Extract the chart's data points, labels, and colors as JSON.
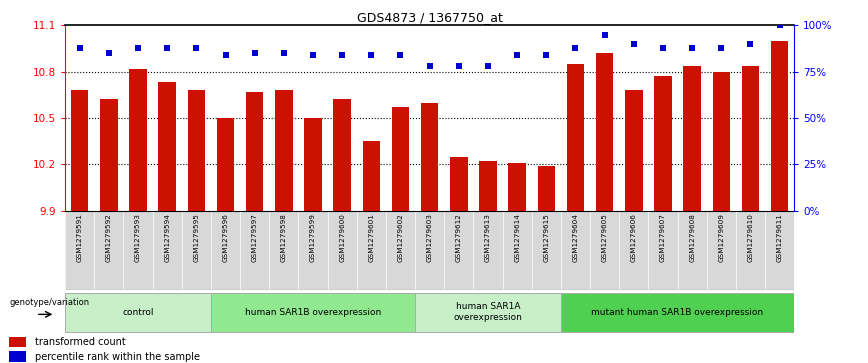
{
  "title": "GDS4873 / 1367750_at",
  "samples": [
    "GSM1279591",
    "GSM1279592",
    "GSM1279593",
    "GSM1279594",
    "GSM1279595",
    "GSM1279596",
    "GSM1279597",
    "GSM1279598",
    "GSM1279599",
    "GSM1279600",
    "GSM1279601",
    "GSM1279602",
    "GSM1279603",
    "GSM1279612",
    "GSM1279613",
    "GSM1279614",
    "GSM1279615",
    "GSM1279604",
    "GSM1279605",
    "GSM1279606",
    "GSM1279607",
    "GSM1279608",
    "GSM1279609",
    "GSM1279610",
    "GSM1279611"
  ],
  "bar_values": [
    10.68,
    10.62,
    10.82,
    10.73,
    10.68,
    10.5,
    10.67,
    10.68,
    10.5,
    10.62,
    10.35,
    10.57,
    10.6,
    10.25,
    10.22,
    10.21,
    10.19,
    10.85,
    10.92,
    10.68,
    10.77,
    10.84,
    10.8,
    10.84,
    11.0
  ],
  "percentile_values": [
    88,
    85,
    88,
    88,
    88,
    84,
    85,
    85,
    84,
    84,
    84,
    84,
    78,
    78,
    78,
    84,
    84,
    88,
    95,
    90,
    88,
    88,
    88,
    90,
    100
  ],
  "groups": [
    {
      "label": "control",
      "start": 0,
      "end": 4,
      "color": "#c8f0c8"
    },
    {
      "label": "human SAR1B overexpression",
      "start": 5,
      "end": 11,
      "color": "#90e890"
    },
    {
      "label": "human SAR1A\noverexpression",
      "start": 12,
      "end": 16,
      "color": "#c8f0c8"
    },
    {
      "label": "mutant human SAR1B overexpression",
      "start": 17,
      "end": 24,
      "color": "#50d050"
    }
  ],
  "ylim_left": [
    9.9,
    11.1
  ],
  "ylim_right": [
    0,
    100
  ],
  "yticks_left": [
    9.9,
    10.2,
    10.5,
    10.8,
    11.1
  ],
  "yticks_right": [
    0,
    25,
    50,
    75,
    100
  ],
  "bar_color": "#cc1100",
  "dot_color": "#0000cc",
  "bar_width": 0.6,
  "grid_lines": [
    10.2,
    10.5,
    10.8
  ],
  "label_transformed": "transformed count",
  "label_percentile": "percentile rank within the sample",
  "genotype_label": "genotype/variation",
  "xlabel_bg": "#d8d8d8"
}
